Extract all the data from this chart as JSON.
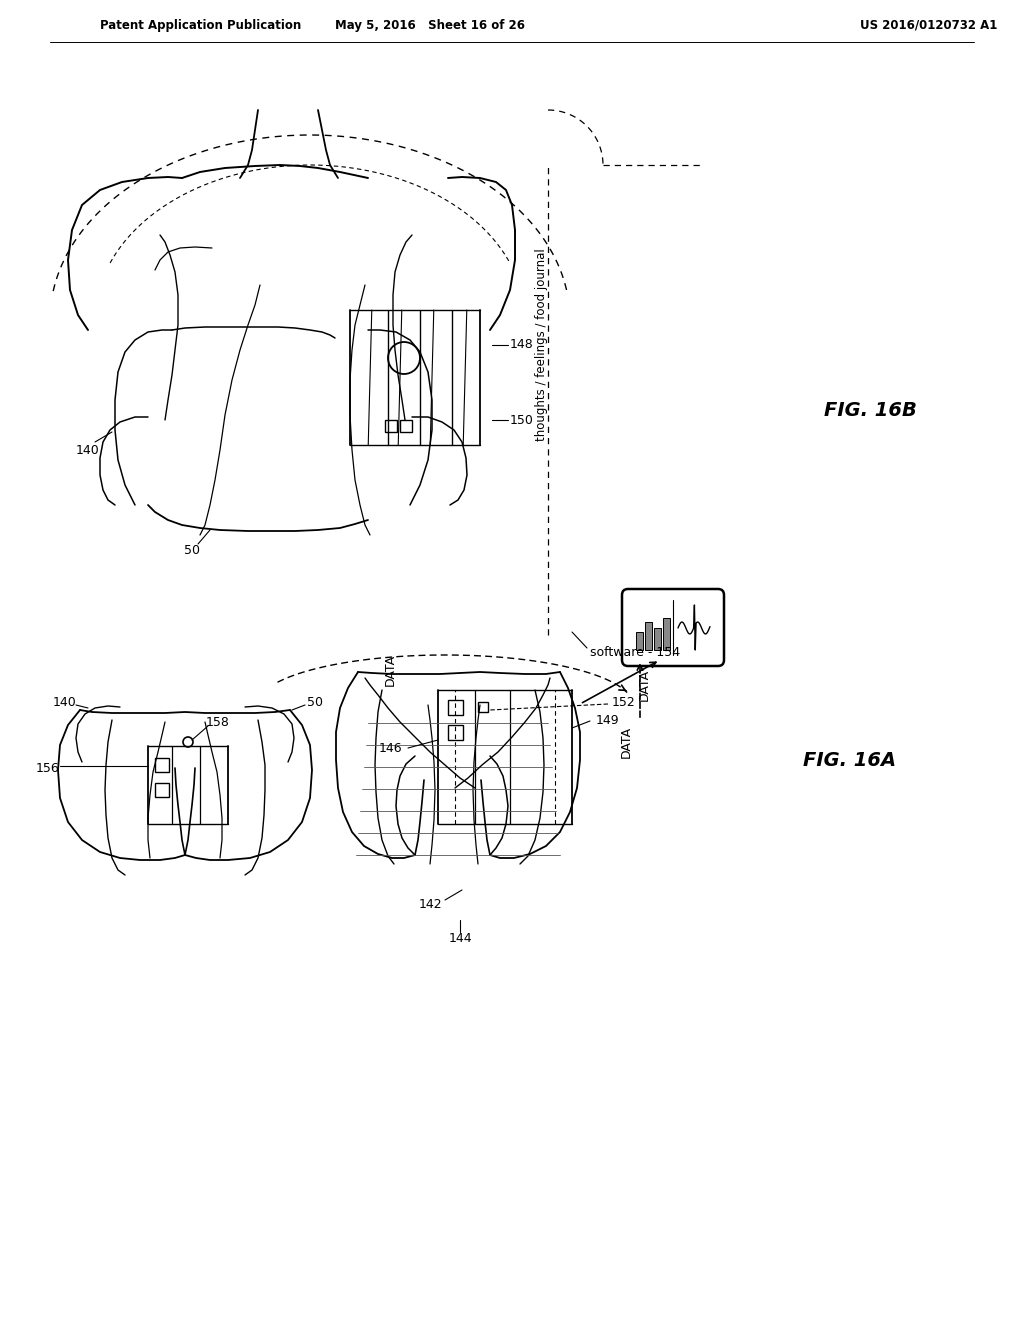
{
  "bg_color": "#ffffff",
  "header_left": "Patent Application Publication",
  "header_mid": "May 5, 2016   Sheet 16 of 26",
  "header_right": "US 2016/0120732 A1",
  "fig_label_16B": "FIG. 16B",
  "fig_label_16A": "FIG. 16A",
  "labels": {
    "140_top": "140",
    "50_top": "50",
    "148": "148",
    "150": "150",
    "thoughts_food": "thoughts / feelings / food journal",
    "software_154": "software - 154",
    "156": "156",
    "158": "158",
    "50_mid": "50",
    "DATA_top": "DATA",
    "DATA_bot": "DATA",
    "152": "152",
    "146": "146",
    "149": "149",
    "142": "142",
    "140_bot": "140",
    "144": "144"
  }
}
